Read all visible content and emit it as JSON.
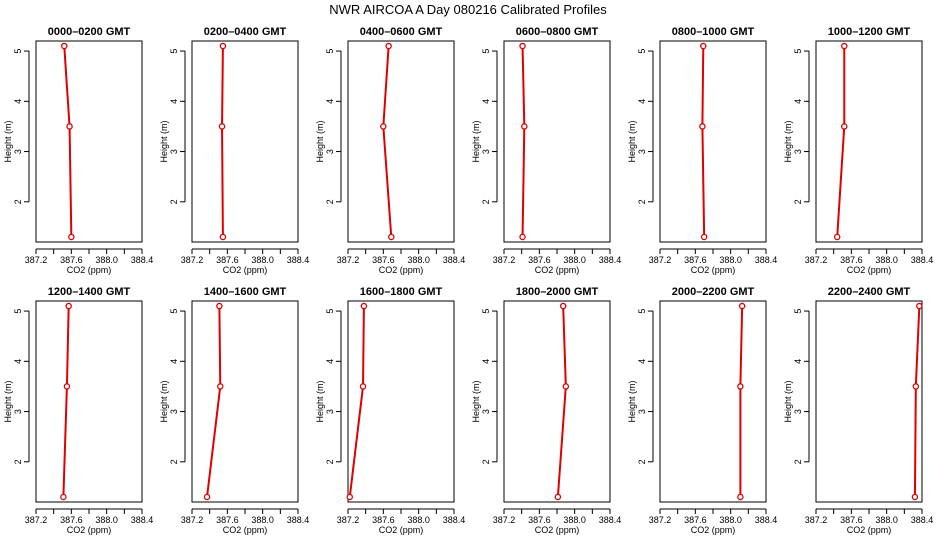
{
  "title": "NWR AIRCOA A  Day 080216  Calibrated Profiles",
  "chart_data": [
    {
      "type": "line",
      "title": "0000–0200 GMT",
      "xlabel": "CO2 (ppm)",
      "ylabel": "Height (m)",
      "xlim": [
        387.2,
        388.4
      ],
      "ylim": [
        1.2,
        5.2
      ],
      "x_ticks": [
        "387.2",
        "387.6",
        "388.0",
        "388.4"
      ],
      "x_ticks_minor": [
        387.4,
        387.8,
        388.2
      ],
      "y_ticks": [
        "2",
        "3",
        "4",
        "5"
      ],
      "heights": [
        1.3,
        3.5,
        5.1
      ],
      "values": [
        387.6,
        387.58,
        387.52
      ]
    },
    {
      "type": "line",
      "title": "0200–0400 GMT",
      "xlabel": "CO2 (ppm)",
      "ylabel": "Height (m)",
      "xlim": [
        387.2,
        388.4
      ],
      "ylim": [
        1.2,
        5.2
      ],
      "x_ticks": [
        "387.2",
        "387.6",
        "388.0",
        "388.4"
      ],
      "x_ticks_minor": [
        387.4,
        387.8,
        388.2
      ],
      "y_ticks": [
        "2",
        "3",
        "4",
        "5"
      ],
      "heights": [
        1.3,
        3.5,
        5.1
      ],
      "values": [
        387.55,
        387.54,
        387.55
      ]
    },
    {
      "type": "line",
      "title": "0400–0600 GMT",
      "xlabel": "CO2 (ppm)",
      "ylabel": "Height (m)",
      "xlim": [
        387.2,
        388.4
      ],
      "ylim": [
        1.2,
        5.2
      ],
      "x_ticks": [
        "387.2",
        "387.6",
        "388.0",
        "388.4"
      ],
      "x_ticks_minor": [
        387.4,
        387.8,
        388.2
      ],
      "y_ticks": [
        "2",
        "3",
        "4",
        "5"
      ],
      "heights": [
        1.3,
        3.5,
        5.1
      ],
      "values": [
        387.69,
        387.6,
        387.66
      ]
    },
    {
      "type": "line",
      "title": "0600–0800 GMT",
      "xlabel": "CO2 (ppm)",
      "ylabel": "Height (m)",
      "xlim": [
        387.2,
        388.4
      ],
      "ylim": [
        1.2,
        5.2
      ],
      "x_ticks": [
        "387.2",
        "387.6",
        "388.0",
        "388.4"
      ],
      "x_ticks_minor": [
        387.4,
        387.8,
        388.2
      ],
      "y_ticks": [
        "2",
        "3",
        "4",
        "5"
      ],
      "heights": [
        1.3,
        3.5,
        5.1
      ],
      "values": [
        387.41,
        387.43,
        387.41
      ]
    },
    {
      "type": "line",
      "title": "0800–1000 GMT",
      "xlabel": "CO2 (ppm)",
      "ylabel": "Height (m)",
      "xlim": [
        387.2,
        388.4
      ],
      "ylim": [
        1.2,
        5.2
      ],
      "x_ticks": [
        "387.2",
        "387.6",
        "388.0",
        "388.4"
      ],
      "x_ticks_minor": [
        387.4,
        387.8,
        388.2
      ],
      "y_ticks": [
        "2",
        "3",
        "4",
        "5"
      ],
      "heights": [
        1.3,
        3.5,
        5.1
      ],
      "values": [
        387.7,
        387.68,
        387.69
      ]
    },
    {
      "type": "line",
      "title": "1000–1200 GMT",
      "xlabel": "CO2 (ppm)",
      "ylabel": "Height (m)",
      "xlim": [
        387.2,
        388.4
      ],
      "ylim": [
        1.2,
        5.2
      ],
      "x_ticks": [
        "387.2",
        "387.6",
        "388.0",
        "388.4"
      ],
      "x_ticks_minor": [
        387.4,
        387.8,
        388.2
      ],
      "y_ticks": [
        "2",
        "3",
        "4",
        "5"
      ],
      "heights": [
        1.3,
        3.5,
        5.1
      ],
      "values": [
        387.44,
        387.52,
        387.52
      ]
    },
    {
      "type": "line",
      "title": "1200–1400 GMT",
      "xlabel": "CO2 (ppm)",
      "ylabel": "Height (m)",
      "xlim": [
        387.2,
        388.4
      ],
      "ylim": [
        1.2,
        5.2
      ],
      "x_ticks": [
        "387.2",
        "387.6",
        "388.0",
        "388.4"
      ],
      "x_ticks_minor": [
        387.4,
        387.8,
        388.2
      ],
      "y_ticks": [
        "2",
        "3",
        "4",
        "5"
      ],
      "heights": [
        1.3,
        3.5,
        5.1
      ],
      "values": [
        387.51,
        387.55,
        387.57
      ]
    },
    {
      "type": "line",
      "title": "1400–1600 GMT",
      "xlabel": "CO2 (ppm)",
      "ylabel": "Height (m)",
      "xlim": [
        387.2,
        388.4
      ],
      "ylim": [
        1.2,
        5.2
      ],
      "x_ticks": [
        "387.2",
        "387.6",
        "388.0",
        "388.4"
      ],
      "x_ticks_minor": [
        387.4,
        387.8,
        388.2
      ],
      "y_ticks": [
        "2",
        "3",
        "4",
        "5"
      ],
      "heights": [
        1.3,
        3.5,
        5.1
      ],
      "values": [
        387.37,
        387.52,
        387.51
      ]
    },
    {
      "type": "line",
      "title": "1600–1800 GMT",
      "xlabel": "CO2 (ppm)",
      "ylabel": "Height (m)",
      "xlim": [
        387.2,
        388.4
      ],
      "ylim": [
        1.2,
        5.2
      ],
      "x_ticks": [
        "387.2",
        "387.6",
        "388.0",
        "388.4"
      ],
      "x_ticks_minor": [
        387.4,
        387.8,
        388.2
      ],
      "y_ticks": [
        "2",
        "3",
        "4",
        "5"
      ],
      "heights": [
        1.3,
        3.5,
        5.1
      ],
      "values": [
        387.22,
        387.37,
        387.38
      ]
    },
    {
      "type": "line",
      "title": "1800–2000 GMT",
      "xlabel": "CO2 (ppm)",
      "ylabel": "Height (m)",
      "xlim": [
        387.2,
        388.4
      ],
      "ylim": [
        1.2,
        5.2
      ],
      "x_ticks": [
        "387.2",
        "387.6",
        "388.0",
        "388.4"
      ],
      "x_ticks_minor": [
        387.4,
        387.8,
        388.2
      ],
      "y_ticks": [
        "2",
        "3",
        "4",
        "5"
      ],
      "heights": [
        1.3,
        3.5,
        5.1
      ],
      "values": [
        387.81,
        387.9,
        387.87
      ]
    },
    {
      "type": "line",
      "title": "2000–2200 GMT",
      "xlabel": "CO2 (ppm)",
      "ylabel": "Height (m)",
      "xlim": [
        387.2,
        388.4
      ],
      "ylim": [
        1.2,
        5.2
      ],
      "x_ticks": [
        "387.2",
        "387.6",
        "388.0",
        "388.4"
      ],
      "x_ticks_minor": [
        387.4,
        387.8,
        388.2
      ],
      "y_ticks": [
        "2",
        "3",
        "4",
        "5"
      ],
      "heights": [
        1.3,
        3.5,
        5.1
      ],
      "values": [
        388.11,
        388.11,
        388.13
      ]
    },
    {
      "type": "line",
      "title": "2200–2400 GMT",
      "xlabel": "CO2 (ppm)",
      "ylabel": "Height (m)",
      "xlim": [
        387.2,
        388.4
      ],
      "ylim": [
        1.2,
        5.2
      ],
      "x_ticks": [
        "387.2",
        "387.6",
        "388.0",
        "388.4"
      ],
      "x_ticks_minor": [
        387.4,
        387.8,
        388.2
      ],
      "y_ticks": [
        "2",
        "3",
        "4",
        "5"
      ],
      "heights": [
        1.3,
        3.5,
        5.1
      ],
      "values": [
        388.32,
        388.33,
        388.37
      ]
    }
  ]
}
